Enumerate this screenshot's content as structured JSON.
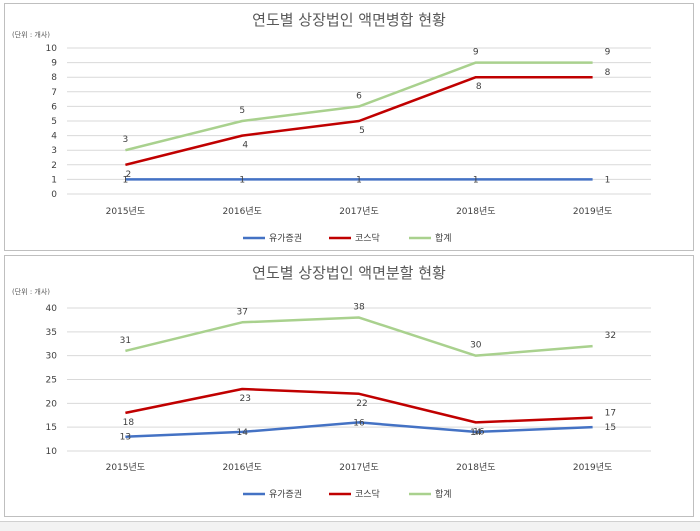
{
  "chart_data": [
    {
      "type": "line",
      "title": "연도별 상장법인 액면병합 현황",
      "unit_label": "(단위 : 개사)",
      "categories": [
        "2015년도",
        "2016년도",
        "2017년도",
        "2018년도",
        "2019년도"
      ],
      "ylim": [
        0,
        10
      ],
      "yticks": [
        0,
        1,
        2,
        3,
        4,
        5,
        6,
        7,
        8,
        9,
        10
      ],
      "grid": true,
      "legend_position": "bottom",
      "series": [
        {
          "name": "유가증권",
          "color": "#4472c4",
          "values": [
            1,
            1,
            1,
            1,
            1
          ]
        },
        {
          "name": "코스닥",
          "color": "#c00000",
          "values": [
            2,
            4,
            5,
            8,
            8
          ]
        },
        {
          "name": "합계",
          "color": "#a9d18e",
          "values": [
            3,
            5,
            6,
            9,
            9
          ]
        }
      ]
    },
    {
      "type": "line",
      "title": "연도별 상장법인 액면분할 현황",
      "unit_label": "(단위 : 개사)",
      "categories": [
        "2015년도",
        "2016년도",
        "2017년도",
        "2018년도",
        "2019년도"
      ],
      "ylim": [
        10,
        40
      ],
      "yticks": [
        10,
        15,
        20,
        25,
        30,
        35,
        40
      ],
      "grid": true,
      "legend_position": "bottom",
      "series": [
        {
          "name": "유가증권",
          "color": "#4472c4",
          "values": [
            13,
            14,
            16,
            14,
            15
          ]
        },
        {
          "name": "코스닥",
          "color": "#c00000",
          "values": [
            18,
            23,
            22,
            16,
            17
          ]
        },
        {
          "name": "합계",
          "color": "#a9d18e",
          "values": [
            31,
            37,
            38,
            30,
            32
          ]
        }
      ]
    }
  ]
}
